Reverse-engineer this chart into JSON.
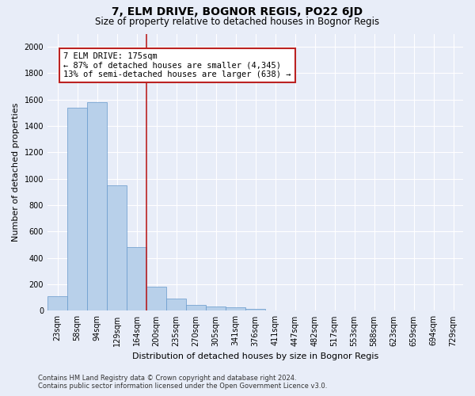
{
  "title": "7, ELM DRIVE, BOGNOR REGIS, PO22 6JD",
  "subtitle": "Size of property relative to detached houses in Bognor Regis",
  "xlabel": "Distribution of detached houses by size in Bognor Regis",
  "ylabel": "Number of detached properties",
  "categories": [
    "23sqm",
    "58sqm",
    "94sqm",
    "129sqm",
    "164sqm",
    "200sqm",
    "235sqm",
    "270sqm",
    "305sqm",
    "341sqm",
    "376sqm",
    "411sqm",
    "447sqm",
    "482sqm",
    "517sqm",
    "553sqm",
    "588sqm",
    "623sqm",
    "659sqm",
    "694sqm",
    "729sqm"
  ],
  "values": [
    110,
    1540,
    1580,
    950,
    480,
    180,
    95,
    45,
    35,
    25,
    15,
    0,
    0,
    0,
    0,
    0,
    0,
    0,
    0,
    0,
    0
  ],
  "bar_color": "#b8d0ea",
  "bar_edge_color": "#6699cc",
  "vline_color": "#bb2222",
  "annotation_text": "7 ELM DRIVE: 175sqm\n← 87% of detached houses are smaller (4,345)\n13% of semi-detached houses are larger (638) →",
  "annotation_box_color": "#ffffff",
  "annotation_box_edge_color": "#bb2222",
  "ylim": [
    0,
    2100
  ],
  "yticks": [
    0,
    200,
    400,
    600,
    800,
    1000,
    1200,
    1400,
    1600,
    1800,
    2000
  ],
  "footer": "Contains HM Land Registry data © Crown copyright and database right 2024.\nContains public sector information licensed under the Open Government Licence v3.0.",
  "bg_color": "#e8edf8",
  "plot_bg_color": "#e8edf8",
  "title_fontsize": 10,
  "subtitle_fontsize": 8.5,
  "axis_label_fontsize": 8,
  "tick_fontsize": 7,
  "footer_fontsize": 6,
  "vline_x_index": 4.5
}
